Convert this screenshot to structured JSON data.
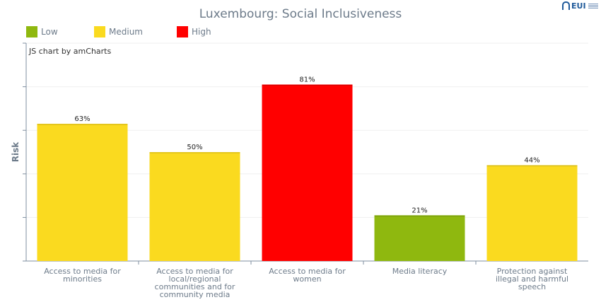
{
  "chart_data": {
    "type": "bar",
    "title": "Luxembourg: Social Inclusiveness",
    "ylabel": "Risk",
    "xlabel": "",
    "ylim": [
      0,
      100
    ],
    "grid": true,
    "legend_position": "top-left",
    "legend": [
      {
        "label": "Low",
        "color": "#8fb80f"
      },
      {
        "label": "Medium",
        "color": "#fada1f"
      },
      {
        "label": "High",
        "color": "#ff0000"
      }
    ],
    "categories": [
      [
        "Access to media for",
        "minorities"
      ],
      [
        "Access to media for",
        "local/regional",
        "communities and for",
        "community media"
      ],
      [
        "Access to media for",
        "women"
      ],
      [
        "Media literacy"
      ],
      [
        "Protection against",
        "illegal and harmful",
        "speech"
      ]
    ],
    "values": [
      63,
      50,
      81,
      21,
      44
    ],
    "value_labels": [
      "63%",
      "50%",
      "81%",
      "21%",
      "44%"
    ],
    "risk_levels": [
      "Medium",
      "Medium",
      "High",
      "Low",
      "Medium"
    ],
    "level_colors": {
      "Low": "#8fb80f",
      "Medium": "#fada1f",
      "High": "#ff0000"
    }
  },
  "credit": "JS chart by amCharts",
  "logo_text": "EUI"
}
